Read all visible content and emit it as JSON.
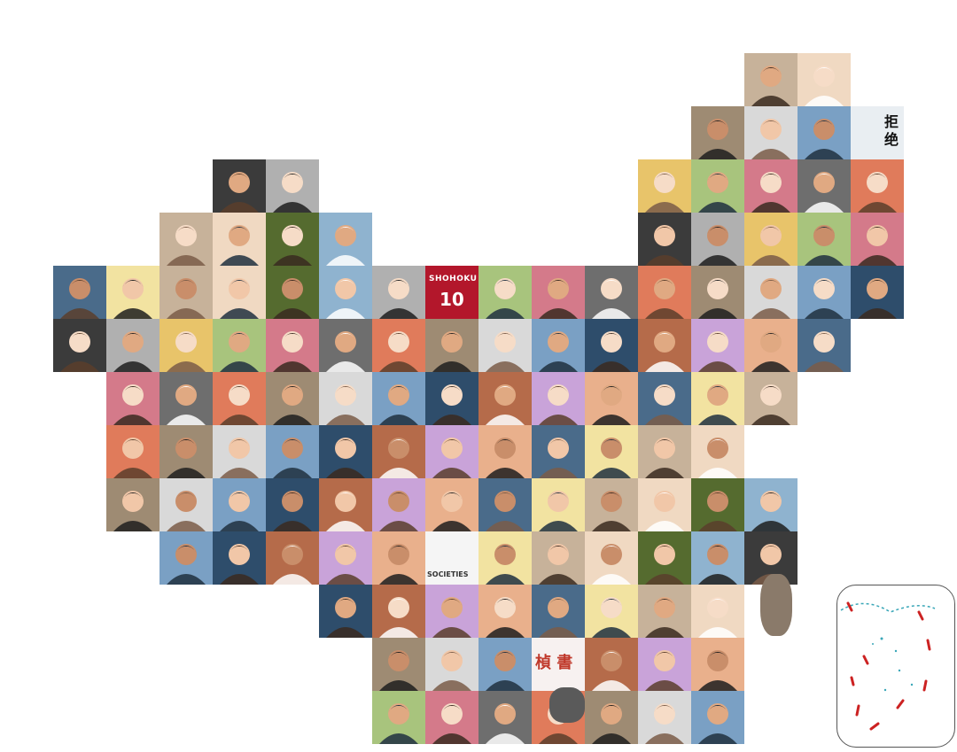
{
  "map": {
    "description_name": "China avatar mosaic map",
    "tiles": [
      {
        "cls": "avatar",
        "fill": "#c9b9a6",
        "accent": "#6b4a36"
      },
      {
        "cls": "avatar",
        "fill": "#9fc1d9",
        "accent": "#ffffff"
      }
    ]
  },
  "text_tiles": {
    "jersey": {
      "team": "SHOHOKU",
      "number": "10"
    },
    "refuse": {
      "line1": "拒",
      "line2": "绝"
    },
    "stamp": {
      "text": "楨 書"
    },
    "cartoon_caption": {
      "text": "SOCIETIES"
    }
  },
  "colors": {
    "background": "#ffffff",
    "inset_border": "#555555",
    "inset_red": "#cc2222",
    "inset_teal": "#3aa7b8"
  }
}
